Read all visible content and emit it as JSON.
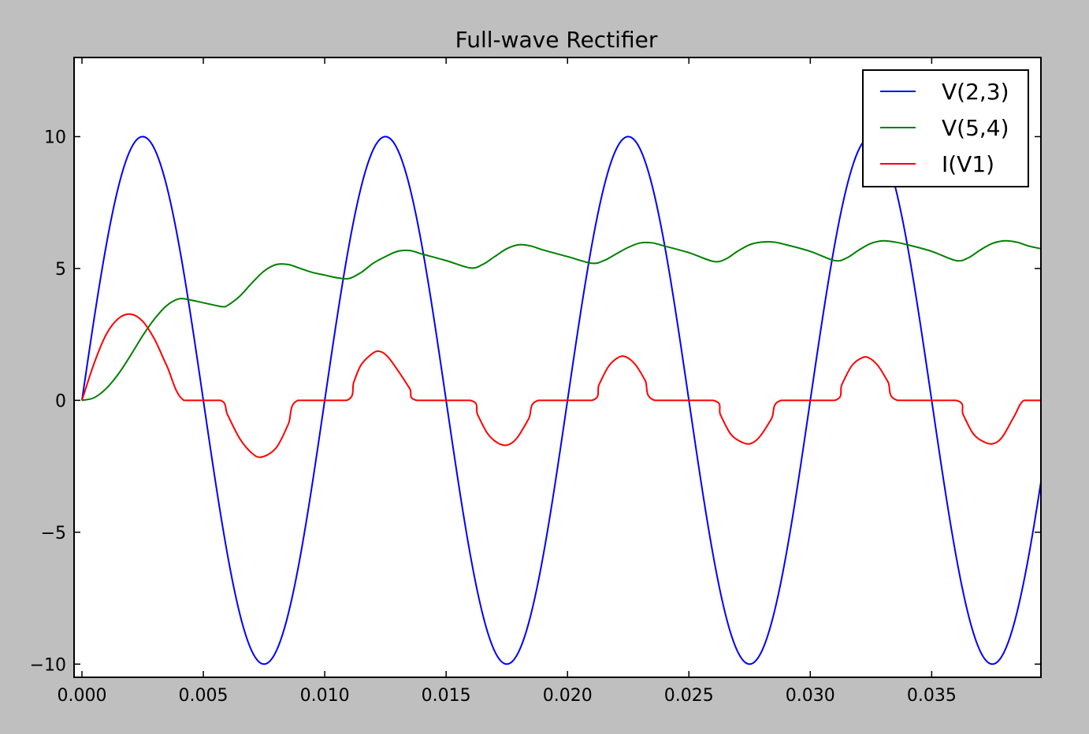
{
  "chart_data": {
    "type": "line",
    "title": "Full-wave Rectifier",
    "xlabel": "",
    "ylabel": "",
    "xlim": [
      0,
      0.0395
    ],
    "ylim": [
      -10.5,
      13
    ],
    "xticks": [
      0.0,
      0.005,
      0.01,
      0.015,
      0.02,
      0.025,
      0.03,
      0.035
    ],
    "xtick_labels": [
      "0.000",
      "0.005",
      "0.010",
      "0.015",
      "0.020",
      "0.025",
      "0.030",
      "0.035"
    ],
    "yticks": [
      -10,
      -5,
      0,
      5,
      10
    ],
    "ytick_labels": [
      "−10",
      "−5",
      "0",
      "5",
      "10"
    ],
    "grid": false,
    "legend_position": "top-right",
    "series": [
      {
        "name": "V(2,3)",
        "color": "#0000ff",
        "x": [
          0.0,
          0.0025,
          0.005,
          0.0075,
          0.01,
          0.0125,
          0.015,
          0.0175,
          0.02,
          0.0225,
          0.025,
          0.0275,
          0.03,
          0.0325,
          0.035,
          0.0375,
          0.0395
        ],
        "y": [
          0,
          10,
          0,
          -10,
          0,
          10,
          0,
          -10,
          0,
          10,
          0,
          -10,
          0,
          10,
          0,
          -10,
          -3.1
        ]
      },
      {
        "name": "V(5,4)",
        "color": "#008000",
        "x": [
          0.0,
          0.0005,
          0.001,
          0.0015,
          0.002,
          0.0025,
          0.003,
          0.0035,
          0.004,
          0.0045,
          0.005,
          0.0055,
          0.0058,
          0.006,
          0.0065,
          0.007,
          0.0075,
          0.008,
          0.0085,
          0.009,
          0.0095,
          0.01,
          0.0105,
          0.011,
          0.0115,
          0.012,
          0.0125,
          0.013,
          0.0135,
          0.014,
          0.015,
          0.016,
          0.0165,
          0.017,
          0.0175,
          0.018,
          0.0185,
          0.019,
          0.02,
          0.021,
          0.0215,
          0.022,
          0.0225,
          0.023,
          0.0235,
          0.024,
          0.025,
          0.026,
          0.0265,
          0.027,
          0.0275,
          0.028,
          0.0285,
          0.029,
          0.03,
          0.031,
          0.0315,
          0.032,
          0.0325,
          0.033,
          0.0335,
          0.034,
          0.035,
          0.036,
          0.0365,
          0.037,
          0.0375,
          0.038,
          0.0385,
          0.039,
          0.0395
        ],
        "y": [
          0.0,
          0.1,
          0.45,
          1.0,
          1.7,
          2.45,
          3.1,
          3.6,
          3.85,
          3.8,
          3.7,
          3.6,
          3.55,
          3.6,
          3.95,
          4.45,
          4.9,
          5.15,
          5.15,
          5.0,
          4.85,
          4.75,
          4.65,
          4.62,
          4.85,
          5.2,
          5.45,
          5.65,
          5.68,
          5.55,
          5.3,
          5.02,
          5.15,
          5.45,
          5.75,
          5.9,
          5.85,
          5.7,
          5.45,
          5.2,
          5.3,
          5.55,
          5.8,
          5.97,
          5.97,
          5.85,
          5.6,
          5.27,
          5.35,
          5.65,
          5.9,
          6.0,
          6.0,
          5.9,
          5.65,
          5.3,
          5.4,
          5.7,
          5.95,
          6.05,
          6.0,
          5.9,
          5.65,
          5.3,
          5.4,
          5.7,
          5.95,
          6.05,
          6.0,
          5.85,
          5.75
        ]
      },
      {
        "name": "I(V1)",
        "color": "#ff0000",
        "x": [
          0.0,
          0.0005,
          0.001,
          0.0015,
          0.002,
          0.0025,
          0.003,
          0.0035,
          0.0042,
          0.0057,
          0.006,
          0.0065,
          0.007,
          0.0074,
          0.008,
          0.0085,
          0.0089,
          0.0109,
          0.0112,
          0.0115,
          0.012,
          0.0123,
          0.0126,
          0.013,
          0.0135,
          0.0138,
          0.016,
          0.0163,
          0.0167,
          0.0171,
          0.0175,
          0.0179,
          0.0184,
          0.0188,
          0.021,
          0.0213,
          0.0217,
          0.0221,
          0.0224,
          0.0228,
          0.0232,
          0.0236,
          0.026,
          0.0263,
          0.0267,
          0.0271,
          0.0275,
          0.0279,
          0.0284,
          0.0288,
          0.031,
          0.0313,
          0.0317,
          0.0321,
          0.0324,
          0.0328,
          0.0332,
          0.0336,
          0.036,
          0.0363,
          0.0367,
          0.0371,
          0.0375,
          0.0379,
          0.0384,
          0.0388,
          0.0395
        ],
        "y": [
          0.0,
          1.4,
          2.5,
          3.1,
          3.27,
          3.0,
          2.3,
          1.3,
          0.0,
          0.0,
          -0.55,
          -1.45,
          -2.0,
          -2.15,
          -1.8,
          -0.9,
          0.0,
          0.0,
          0.7,
          1.35,
          1.8,
          1.85,
          1.65,
          1.15,
          0.45,
          0.0,
          0.0,
          -0.55,
          -1.25,
          -1.6,
          -1.7,
          -1.45,
          -0.7,
          0.0,
          0.0,
          0.6,
          1.3,
          1.63,
          1.65,
          1.35,
          0.75,
          0.0,
          0.0,
          -0.55,
          -1.25,
          -1.55,
          -1.65,
          -1.4,
          -0.7,
          0.0,
          0.0,
          0.6,
          1.3,
          1.6,
          1.62,
          1.3,
          0.7,
          0.0,
          0.0,
          -0.55,
          -1.25,
          -1.55,
          -1.65,
          -1.4,
          -0.6,
          0.0,
          0.0
        ]
      }
    ]
  }
}
